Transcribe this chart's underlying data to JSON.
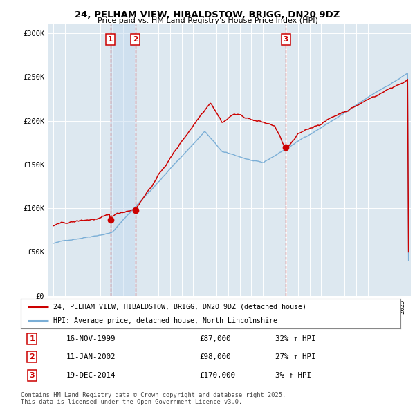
{
  "title": "24, PELHAM VIEW, HIBALDSTOW, BRIGG, DN20 9DZ",
  "subtitle": "Price paid vs. HM Land Registry's House Price Index (HPI)",
  "background_color": "#ffffff",
  "plot_bg_color": "#dde8f0",
  "grid_color": "#ffffff",
  "red_line_color": "#cc0000",
  "blue_line_color": "#7aaed6",
  "highlight_bg": "#c8dced",
  "sale_marker_color": "#cc0000",
  "dashed_line_color": "#cc0000",
  "legend_label_red": "24, PELHAM VIEW, HIBALDSTOW, BRIGG, DN20 9DZ (detached house)",
  "legend_label_blue": "HPI: Average price, detached house, North Lincolnshire",
  "sales": [
    {
      "num": 1,
      "date_label": "16-NOV-1999",
      "price": 87000,
      "price_str": "£87,000",
      "hpi_pct": "32% ↑ HPI",
      "x_year": 1999.88
    },
    {
      "num": 2,
      "date_label": "11-JAN-2002",
      "price": 98000,
      "price_str": "£98,000",
      "hpi_pct": "27% ↑ HPI",
      "x_year": 2002.03
    },
    {
      "num": 3,
      "date_label": "19-DEC-2014",
      "price": 170000,
      "price_str": "£170,000",
      "hpi_pct": "3% ↑ HPI",
      "x_year": 2014.96
    }
  ],
  "footer": "Contains HM Land Registry data © Crown copyright and database right 2025.\nThis data is licensed under the Open Government Licence v3.0.",
  "yticks": [
    0,
    50000,
    100000,
    150000,
    200000,
    250000,
    300000
  ],
  "ytick_labels": [
    "£0",
    "£50K",
    "£100K",
    "£150K",
    "£200K",
    "£250K",
    "£300K"
  ],
  "xlim": [
    1994.5,
    2025.7
  ],
  "ylim": [
    0,
    310000
  ]
}
